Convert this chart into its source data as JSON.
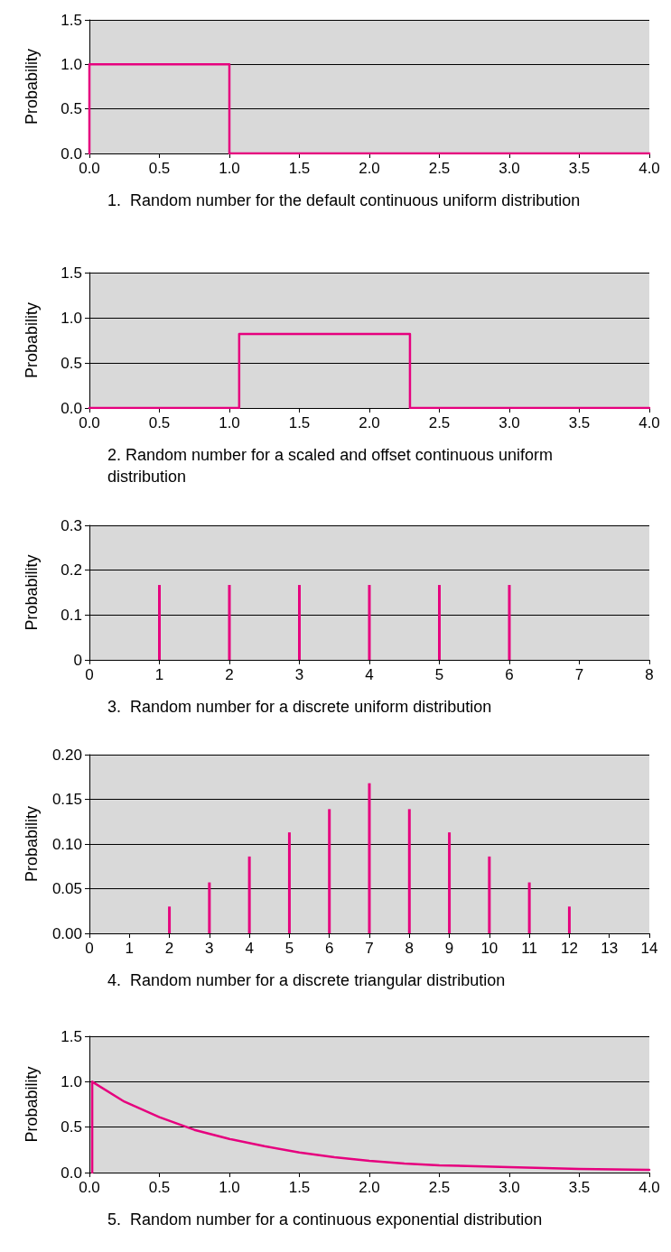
{
  "chart_data": [
    {
      "type": "line",
      "xlabel": "1.  Random number for the default continuous uniform distribution",
      "ylabel": "Probability",
      "grid": "y",
      "marker": "none",
      "line_style": "solid",
      "series": [
        {
          "color": "#e6007e",
          "x": [
            0,
            0,
            1,
            1,
            4
          ],
          "values": [
            0,
            1,
            1,
            0,
            0
          ]
        }
      ],
      "xlim": [
        0,
        4
      ],
      "ylim": [
        0,
        1.5
      ],
      "xticks": [
        {
          "value": 0,
          "label": "0.0"
        },
        {
          "value": 0.5,
          "label": "0.5"
        },
        {
          "value": 1,
          "label": "1.0"
        },
        {
          "value": 1.5,
          "label": "1.5"
        },
        {
          "value": 2,
          "label": "2.0"
        },
        {
          "value": 2.5,
          "label": "2.5"
        },
        {
          "value": 3,
          "label": "3.0"
        },
        {
          "value": 3.5,
          "label": "3.5"
        },
        {
          "value": 4,
          "label": "4.0"
        }
      ],
      "yticks": [
        {
          "value": 0,
          "label": "0.0"
        },
        {
          "value": 0.5,
          "label": "0.5"
        },
        {
          "value": 1,
          "label": "1.0"
        },
        {
          "value": 1.5,
          "label": "1.5"
        }
      ]
    },
    {
      "type": "line",
      "xlabel": "2. Random number for a scaled and offset continuous uniform distribution",
      "ylabel": "Probability",
      "grid": "y",
      "marker": "none",
      "line_style": "solid",
      "series": [
        {
          "color": "#e6007e",
          "x": [
            0,
            1.07,
            1.07,
            2.29,
            2.29,
            4
          ],
          "values": [
            0,
            0,
            0.82,
            0.82,
            0,
            0
          ]
        }
      ],
      "xlim": [
        0,
        4
      ],
      "ylim": [
        0,
        1.5
      ],
      "xticks": [
        {
          "value": 0,
          "label": "0.0"
        },
        {
          "value": 0.5,
          "label": "0.5"
        },
        {
          "value": 1,
          "label": "1.0"
        },
        {
          "value": 1.5,
          "label": "1.5"
        },
        {
          "value": 2,
          "label": "2.0"
        },
        {
          "value": 2.5,
          "label": "2.5"
        },
        {
          "value": 3,
          "label": "3.0"
        },
        {
          "value": 3.5,
          "label": "3.5"
        },
        {
          "value": 4,
          "label": "4.0"
        }
      ],
      "yticks": [
        {
          "value": 0,
          "label": "0.0"
        },
        {
          "value": 0.5,
          "label": "0.5"
        },
        {
          "value": 1,
          "label": "1.0"
        },
        {
          "value": 1.5,
          "label": "1.5"
        }
      ]
    },
    {
      "type": "bar",
      "xlabel": "3.  Random number for a discrete uniform distribution",
      "ylabel": "Probability",
      "grid": "y",
      "series": [
        {
          "color": "#e6007e",
          "x": [
            1,
            2,
            3,
            4,
            5,
            6
          ],
          "values": [
            0.167,
            0.167,
            0.167,
            0.167,
            0.167,
            0.167
          ]
        }
      ],
      "xlim": [
        0,
        8
      ],
      "ylim": [
        0,
        0.3
      ],
      "xticks": [
        0,
        1,
        2,
        3,
        4,
        5,
        6,
        7,
        8
      ],
      "yticks": [
        0,
        0.1,
        0.2,
        0.3
      ]
    },
    {
      "type": "bar",
      "xlabel": "4.  Random number for a discrete triangular distribution",
      "ylabel": "Probability",
      "grid": "y",
      "series": [
        {
          "color": "#e6007e",
          "x": [
            2,
            3,
            4,
            5,
            6,
            7,
            8,
            9,
            10,
            11,
            12
          ],
          "values": [
            0.03,
            0.057,
            0.086,
            0.113,
            0.139,
            0.168,
            0.139,
            0.113,
            0.086,
            0.057,
            0.03
          ]
        }
      ],
      "xlim": [
        0,
        14
      ],
      "ylim": [
        0,
        0.2
      ],
      "xticks": [
        0,
        1,
        2,
        3,
        4,
        5,
        6,
        7,
        8,
        9,
        10,
        11,
        12,
        13,
        14
      ],
      "yticks": [
        {
          "value": 0,
          "label": "0.00"
        },
        {
          "value": 0.05,
          "label": "0.05"
        },
        {
          "value": 0.1,
          "label": "0.10"
        },
        {
          "value": 0.15,
          "label": "0.15"
        },
        {
          "value": 0.2,
          "label": "0.20"
        }
      ]
    },
    {
      "type": "line",
      "xlabel": "5.  Random number for a continuous exponential distribution",
      "ylabel": "Probability",
      "grid": "y",
      "marker": "none",
      "line_style": "solid",
      "series": [
        {
          "color": "#e6007e",
          "x": [
            0.02,
            0.02,
            0.25,
            0.5,
            0.75,
            1,
            1.25,
            1.5,
            1.75,
            2,
            2.25,
            2.5,
            3,
            3.5,
            4
          ],
          "values": [
            0,
            1,
            0.78,
            0.61,
            0.47,
            0.37,
            0.29,
            0.22,
            0.17,
            0.13,
            0.1,
            0.08,
            0.06,
            0.04,
            0.03
          ]
        }
      ],
      "xlim": [
        0,
        4
      ],
      "ylim": [
        0,
        1.5
      ],
      "xticks": [
        {
          "value": 0,
          "label": "0.0"
        },
        {
          "value": 0.5,
          "label": "0.5"
        },
        {
          "value": 1,
          "label": "1.0"
        },
        {
          "value": 1.5,
          "label": "1.5"
        },
        {
          "value": 2,
          "label": "2.0"
        },
        {
          "value": 2.5,
          "label": "2.5"
        },
        {
          "value": 3,
          "label": "3.0"
        },
        {
          "value": 3.5,
          "label": "3.5"
        },
        {
          "value": 4,
          "label": "4.0"
        }
      ],
      "yticks": [
        {
          "value": 0,
          "label": "0.0"
        },
        {
          "value": 0.5,
          "label": "0.5"
        },
        {
          "value": 1,
          "label": "1.0"
        },
        {
          "value": 1.5,
          "label": "1.5"
        }
      ]
    }
  ]
}
